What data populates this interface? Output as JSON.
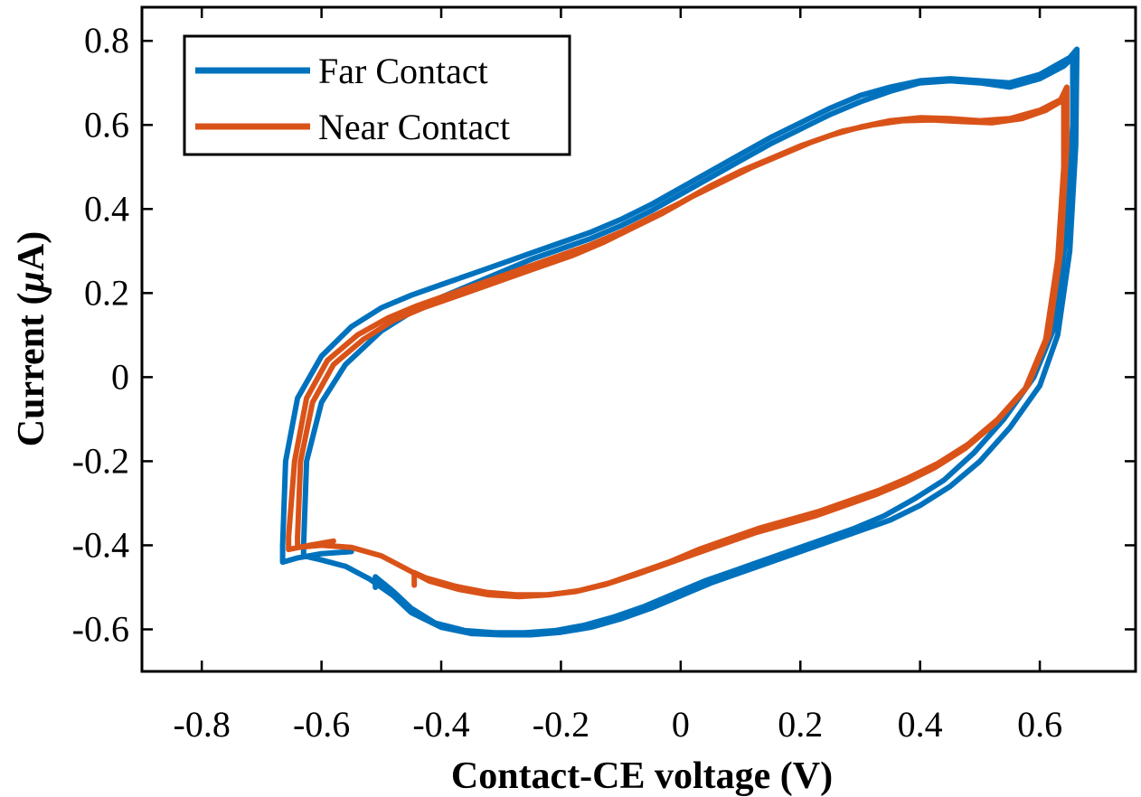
{
  "chart_data": {
    "type": "line",
    "title": "",
    "xlabel": "Contact-CE voltage (V)",
    "ylabel_prefix": "Current (",
    "ylabel_mu": "μ",
    "ylabel_suffix": "A)",
    "xlim": [
      -0.9,
      0.76
    ],
    "ylim": [
      -0.7,
      0.88
    ],
    "xticks": [
      -0.8,
      -0.6,
      -0.4,
      -0.2,
      0,
      0.2,
      0.4,
      0.6
    ],
    "xtick_labels": [
      "-0.8",
      "-0.6",
      "-0.4",
      "-0.2",
      "0",
      "0.2",
      "0.4",
      "0.6"
    ],
    "yticks": [
      -0.6,
      -0.4,
      -0.2,
      0,
      0.2,
      0.4,
      0.6,
      0.8
    ],
    "ytick_labels": [
      "-0.6",
      "-0.4",
      "-0.2",
      "0",
      "0.2",
      "0.4",
      "0.6",
      "0.8"
    ],
    "legend_position": "top-left",
    "series": [
      {
        "name": "Far Contact",
        "color": "#0072BD",
        "loops": [
          [
            [
              -0.55,
              -0.415
            ],
            [
              -0.6,
              -0.42
            ],
            [
              -0.64,
              -0.43
            ],
            [
              -0.665,
              -0.44
            ],
            [
              -0.665,
              -0.4
            ],
            [
              -0.66,
              -0.2
            ],
            [
              -0.64,
              -0.05
            ],
            [
              -0.6,
              0.05
            ],
            [
              -0.55,
              0.12
            ],
            [
              -0.5,
              0.165
            ],
            [
              -0.45,
              0.195
            ],
            [
              -0.4,
              0.22
            ],
            [
              -0.35,
              0.245
            ],
            [
              -0.3,
              0.27
            ],
            [
              -0.25,
              0.295
            ],
            [
              -0.2,
              0.32
            ],
            [
              -0.15,
              0.345
            ],
            [
              -0.1,
              0.375
            ],
            [
              -0.05,
              0.41
            ],
            [
              0.0,
              0.45
            ],
            [
              0.05,
              0.49
            ],
            [
              0.1,
              0.53
            ],
            [
              0.15,
              0.57
            ],
            [
              0.2,
              0.605
            ],
            [
              0.25,
              0.64
            ],
            [
              0.3,
              0.67
            ],
            [
              0.35,
              0.69
            ],
            [
              0.4,
              0.705
            ],
            [
              0.45,
              0.71
            ],
            [
              0.5,
              0.705
            ],
            [
              0.55,
              0.7
            ],
            [
              0.6,
              0.72
            ],
            [
              0.65,
              0.76
            ],
            [
              0.662,
              0.78
            ],
            [
              0.66,
              0.55
            ],
            [
              0.65,
              0.3
            ],
            [
              0.63,
              0.1
            ],
            [
              0.6,
              -0.02
            ],
            [
              0.55,
              -0.12
            ],
            [
              0.5,
              -0.2
            ],
            [
              0.45,
              -0.26
            ],
            [
              0.4,
              -0.305
            ],
            [
              0.35,
              -0.34
            ],
            [
              0.3,
              -0.365
            ],
            [
              0.25,
              -0.39
            ],
            [
              0.2,
              -0.415
            ],
            [
              0.15,
              -0.44
            ],
            [
              0.1,
              -0.465
            ],
            [
              0.05,
              -0.49
            ],
            [
              0.0,
              -0.52
            ],
            [
              -0.05,
              -0.55
            ],
            [
              -0.1,
              -0.575
            ],
            [
              -0.15,
              -0.595
            ],
            [
              -0.2,
              -0.607
            ],
            [
              -0.25,
              -0.613
            ],
            [
              -0.3,
              -0.613
            ],
            [
              -0.35,
              -0.61
            ],
            [
              -0.4,
              -0.595
            ],
            [
              -0.45,
              -0.56
            ],
            [
              -0.48,
              -0.52
            ],
            [
              -0.52,
              -0.48
            ],
            [
              -0.56,
              -0.45
            ],
            [
              -0.6,
              -0.435
            ],
            [
              -0.63,
              -0.425
            ],
            [
              -0.63,
              -0.4
            ]
          ],
          [
            [
              -0.63,
              -0.4
            ],
            [
              -0.625,
              -0.2
            ],
            [
              -0.6,
              -0.06
            ],
            [
              -0.56,
              0.03
            ],
            [
              -0.5,
              0.11
            ],
            [
              -0.45,
              0.155
            ],
            [
              -0.4,
              0.19
            ],
            [
              -0.35,
              0.22
            ],
            [
              -0.3,
              0.25
            ],
            [
              -0.25,
              0.28
            ],
            [
              -0.2,
              0.305
            ],
            [
              -0.15,
              0.33
            ],
            [
              -0.1,
              0.36
            ],
            [
              -0.05,
              0.395
            ],
            [
              0.0,
              0.435
            ],
            [
              0.05,
              0.475
            ],
            [
              0.1,
              0.515
            ],
            [
              0.15,
              0.555
            ],
            [
              0.2,
              0.59
            ],
            [
              0.25,
              0.625
            ],
            [
              0.3,
              0.655
            ],
            [
              0.35,
              0.68
            ],
            [
              0.4,
              0.7
            ],
            [
              0.45,
              0.705
            ],
            [
              0.5,
              0.7
            ],
            [
              0.55,
              0.69
            ],
            [
              0.6,
              0.71
            ],
            [
              0.64,
              0.74
            ],
            [
              0.655,
              0.76
            ],
            [
              0.655,
              0.6
            ],
            [
              0.645,
              0.35
            ],
            [
              0.625,
              0.12
            ],
            [
              0.59,
              0.0
            ],
            [
              0.54,
              -0.1
            ],
            [
              0.49,
              -0.18
            ],
            [
              0.44,
              -0.245
            ],
            [
              0.39,
              -0.29
            ],
            [
              0.34,
              -0.33
            ],
            [
              0.29,
              -0.36
            ],
            [
              0.24,
              -0.385
            ],
            [
              0.19,
              -0.41
            ],
            [
              0.14,
              -0.435
            ],
            [
              0.09,
              -0.46
            ],
            [
              0.04,
              -0.485
            ],
            [
              -0.01,
              -0.515
            ],
            [
              -0.06,
              -0.545
            ],
            [
              -0.11,
              -0.57
            ],
            [
              -0.16,
              -0.59
            ],
            [
              -0.21,
              -0.603
            ],
            [
              -0.26,
              -0.608
            ],
            [
              -0.31,
              -0.608
            ],
            [
              -0.36,
              -0.603
            ],
            [
              -0.41,
              -0.585
            ],
            [
              -0.45,
              -0.55
            ],
            [
              -0.48,
              -0.51
            ],
            [
              -0.51,
              -0.475
            ],
            [
              -0.51,
              -0.5
            ]
          ]
        ]
      },
      {
        "name": "Near Contact",
        "color": "#D95319",
        "loops": [
          [
            [
              -0.58,
              -0.39
            ],
            [
              -0.62,
              -0.4
            ],
            [
              -0.655,
              -0.41
            ],
            [
              -0.655,
              -0.38
            ],
            [
              -0.645,
              -0.2
            ],
            [
              -0.625,
              -0.05
            ],
            [
              -0.59,
              0.04
            ],
            [
              -0.54,
              0.1
            ],
            [
              -0.49,
              0.14
            ],
            [
              -0.44,
              0.17
            ],
            [
              -0.4,
              0.19
            ],
            [
              -0.35,
              0.215
            ],
            [
              -0.3,
              0.24
            ],
            [
              -0.25,
              0.265
            ],
            [
              -0.2,
              0.29
            ],
            [
              -0.15,
              0.315
            ],
            [
              -0.1,
              0.345
            ],
            [
              -0.05,
              0.38
            ],
            [
              0.0,
              0.415
            ],
            [
              0.05,
              0.455
            ],
            [
              0.1,
              0.49
            ],
            [
              0.15,
              0.52
            ],
            [
              0.2,
              0.55
            ],
            [
              0.25,
              0.575
            ],
            [
              0.3,
              0.595
            ],
            [
              0.35,
              0.61
            ],
            [
              0.4,
              0.617
            ],
            [
              0.45,
              0.615
            ],
            [
              0.5,
              0.61
            ],
            [
              0.55,
              0.615
            ],
            [
              0.6,
              0.635
            ],
            [
              0.635,
              0.66
            ],
            [
              0.645,
              0.69
            ],
            [
              0.645,
              0.55
            ],
            [
              0.635,
              0.3
            ],
            [
              0.615,
              0.1
            ],
            [
              0.58,
              -0.02
            ],
            [
              0.53,
              -0.1
            ],
            [
              0.48,
              -0.16
            ],
            [
              0.43,
              -0.205
            ],
            [
              0.38,
              -0.24
            ],
            [
              0.33,
              -0.27
            ],
            [
              0.28,
              -0.295
            ],
            [
              0.23,
              -0.32
            ],
            [
              0.18,
              -0.34
            ],
            [
              0.13,
              -0.36
            ],
            [
              0.08,
              -0.385
            ],
            [
              0.03,
              -0.41
            ],
            [
              -0.02,
              -0.44
            ],
            [
              -0.07,
              -0.465
            ],
            [
              -0.12,
              -0.49
            ],
            [
              -0.17,
              -0.508
            ],
            [
              -0.22,
              -0.518
            ],
            [
              -0.27,
              -0.522
            ],
            [
              -0.32,
              -0.518
            ],
            [
              -0.37,
              -0.505
            ],
            [
              -0.42,
              -0.485
            ],
            [
              -0.46,
              -0.455
            ],
            [
              -0.5,
              -0.425
            ],
            [
              -0.55,
              -0.405
            ],
            [
              -0.6,
              -0.4
            ],
            [
              -0.64,
              -0.405
            ],
            [
              -0.64,
              -0.38
            ]
          ],
          [
            [
              -0.64,
              -0.38
            ],
            [
              -0.635,
              -0.2
            ],
            [
              -0.615,
              -0.06
            ],
            [
              -0.58,
              0.03
            ],
            [
              -0.53,
              0.09
            ],
            [
              -0.48,
              0.135
            ],
            [
              -0.43,
              0.165
            ],
            [
              -0.38,
              0.19
            ],
            [
              -0.33,
              0.215
            ],
            [
              -0.28,
              0.24
            ],
            [
              -0.23,
              0.265
            ],
            [
              -0.18,
              0.29
            ],
            [
              -0.13,
              0.32
            ],
            [
              -0.08,
              0.355
            ],
            [
              -0.03,
              0.39
            ],
            [
              0.02,
              0.43
            ],
            [
              0.07,
              0.465
            ],
            [
              0.12,
              0.5
            ],
            [
              0.17,
              0.53
            ],
            [
              0.22,
              0.56
            ],
            [
              0.27,
              0.585
            ],
            [
              0.32,
              0.6
            ],
            [
              0.37,
              0.61
            ],
            [
              0.42,
              0.612
            ],
            [
              0.47,
              0.608
            ],
            [
              0.52,
              0.605
            ],
            [
              0.57,
              0.615
            ],
            [
              0.61,
              0.635
            ],
            [
              0.64,
              0.66
            ],
            [
              0.64,
              0.5
            ],
            [
              0.63,
              0.28
            ],
            [
              0.61,
              0.09
            ],
            [
              0.575,
              -0.03
            ],
            [
              0.525,
              -0.11
            ],
            [
              0.475,
              -0.17
            ],
            [
              0.425,
              -0.215
            ],
            [
              0.375,
              -0.25
            ],
            [
              0.325,
              -0.28
            ],
            [
              0.275,
              -0.305
            ],
            [
              0.225,
              -0.33
            ],
            [
              0.175,
              -0.35
            ],
            [
              0.125,
              -0.37
            ],
            [
              0.075,
              -0.395
            ],
            [
              0.025,
              -0.42
            ],
            [
              -0.025,
              -0.445
            ],
            [
              -0.075,
              -0.47
            ],
            [
              -0.125,
              -0.493
            ],
            [
              -0.175,
              -0.51
            ],
            [
              -0.225,
              -0.518
            ],
            [
              -0.275,
              -0.518
            ],
            [
              -0.325,
              -0.512
            ],
            [
              -0.375,
              -0.498
            ],
            [
              -0.425,
              -0.478
            ],
            [
              -0.445,
              -0.465
            ],
            [
              -0.445,
              -0.495
            ]
          ]
        ]
      }
    ]
  }
}
